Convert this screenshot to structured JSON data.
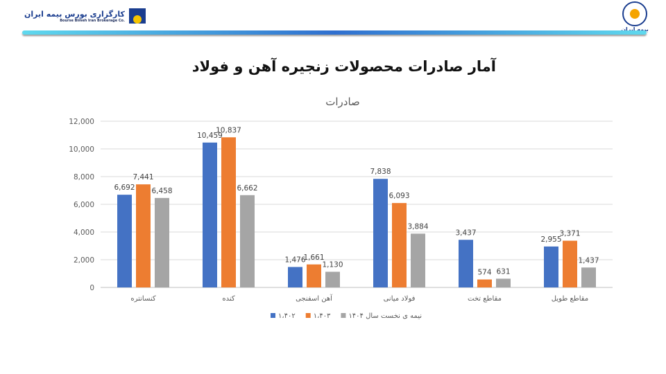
{
  "header": {
    "left_logo_fa": "کارگزاری بورس بیمه ایران",
    "left_logo_en": "Bourse Bimeh Iran Brokerage Co.",
    "right_logo_fa": "بیمه ایران"
  },
  "page_title": "آمار صادرات محصولات زنجیره آهن و فولاد",
  "chart_data": {
    "type": "bar",
    "title": "صادرات",
    "categories": [
      "کنسانتره",
      "کنده",
      "آهن اسفنجی",
      "فولاد میانی",
      "مقاطع تخت",
      "مقاطع طویل"
    ],
    "series": [
      {
        "name": "۱،۴۰۲",
        "color": "#4472c4",
        "values": [
          6692,
          10459,
          1476,
          7838,
          3437,
          2955
        ]
      },
      {
        "name": "۱،۴۰۳",
        "color": "#ed7d31",
        "values": [
          7441,
          10837,
          1661,
          6093,
          574,
          3371
        ]
      },
      {
        "name": "نیمه ی نخست سال ۱۴۰۴",
        "color": "#a5a5a5",
        "values": [
          6458,
          6662,
          1130,
          3884,
          631,
          1437
        ]
      }
    ],
    "yticks": [
      "0",
      "2,000",
      "4,000",
      "6,000",
      "8,000",
      "10,000",
      "12,000"
    ],
    "ylim": [
      0,
      12000
    ],
    "grid": true,
    "legend": "bottom",
    "data_labels": true
  }
}
